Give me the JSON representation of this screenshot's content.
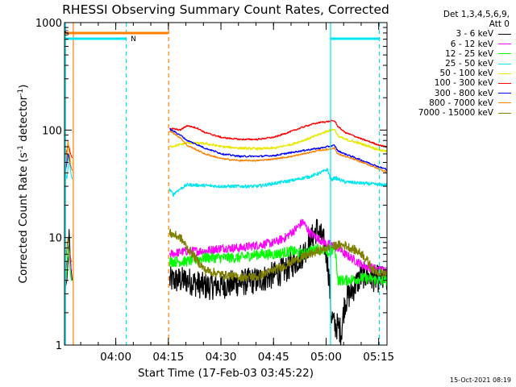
{
  "chart_data": {
    "type": "line",
    "title": "RHESSI Observing Summary Count Rates, Corrected",
    "ylabel_parts": [
      "Corrected Count Rate (s",
      "-1",
      " detector",
      "-1",
      ")"
    ],
    "xlabel": "Start Time (17-Feb-03 03:45:22)",
    "yscale": "log",
    "ylim": [
      1,
      1000
    ],
    "y_ticks": [
      1,
      10,
      100,
      1000
    ],
    "y_tick_labels": [
      "1",
      "10",
      "100",
      "1000"
    ],
    "xlim_min": [
      0,
      92
    ],
    "x_ticks_min": [
      14.63,
      29.63,
      44.63,
      59.63,
      74.63,
      89.63
    ],
    "x_tick_labels": [
      "04:00",
      "04:15",
      "04:30",
      "04:45",
      "05:00",
      "05:15"
    ],
    "legend_header": [
      "Det 1,3,4,5,6,9,",
      "Att 0"
    ],
    "legend_placement": "right, outside plot",
    "flags": [
      {
        "label": "S",
        "color": "#ff8000",
        "start_min": 0.2,
        "end_min": 29.6
      },
      {
        "label": "N",
        "color": "#00e5ee",
        "start_min": 0.2,
        "end_min": 17.5
      },
      {
        "label": "",
        "color": "#00e5ee",
        "start_min": 76.0,
        "end_min": 90.0
      }
    ],
    "vlines": [
      {
        "x_min": 0.3,
        "color": "#00e5ee",
        "style": "solid"
      },
      {
        "x_min": 2.5,
        "color": "#ff8000",
        "style": "solid"
      },
      {
        "x_min": 17.6,
        "color": "#00e5ee",
        "style": "dashed"
      },
      {
        "x_min": 29.7,
        "color": "#ff8000",
        "style": "dashed"
      },
      {
        "x_min": 75.9,
        "color": "#00e5ee",
        "style": "solid"
      },
      {
        "x_min": 89.8,
        "color": "#00e5ee",
        "style": "dashed"
      }
    ],
    "series": [
      {
        "name": "3 - 6 keV",
        "color": "#000000",
        "noise": 0.3,
        "x": [
          30,
          35,
          40,
          45,
          50,
          55,
          60,
          63,
          66,
          68,
          70,
          72,
          74,
          75,
          76,
          77,
          78,
          79,
          80,
          82,
          85,
          88,
          92
        ],
        "y": [
          4,
          4,
          3.5,
          3.6,
          3.8,
          4,
          4.5,
          5,
          6,
          7,
          9,
          12,
          9,
          6,
          2,
          1.5,
          1.5,
          1.3,
          2.5,
          3.2,
          4.5,
          4.2,
          4
        ]
      },
      {
        "name": "6 - 12 keV",
        "color": "#ff00ff",
        "noise": 0.1,
        "x": [
          30,
          35,
          40,
          45,
          50,
          55,
          60,
          63,
          66,
          68,
          70,
          72,
          74,
          76,
          78,
          80,
          85,
          90,
          92
        ],
        "y": [
          7,
          7.5,
          7.5,
          8,
          8,
          8.5,
          9,
          10,
          12,
          14,
          11,
          10,
          9,
          8.5,
          8,
          7,
          5.5,
          5,
          5
        ]
      },
      {
        "name": "12 - 25 keV",
        "color": "#00ff00",
        "noise": 0.12,
        "x": [
          30,
          35,
          40,
          45,
          50,
          55,
          60,
          65,
          68,
          70,
          72,
          74,
          76,
          77,
          78,
          80,
          85,
          90,
          92
        ],
        "y": [
          6,
          6,
          6.5,
          6.5,
          6.5,
          7,
          7,
          7.5,
          7,
          7.5,
          8,
          7.5,
          7,
          8.5,
          4,
          4,
          4.2,
          4,
          4
        ]
      },
      {
        "name": "25 - 50 keV",
        "color": "#00e5ee",
        "noise": 0.04,
        "x": [
          30,
          31,
          32,
          35,
          40,
          45,
          50,
          55,
          60,
          65,
          70,
          73,
          75,
          76,
          77,
          80,
          85,
          90,
          92
        ],
        "y": [
          28,
          25,
          27,
          31,
          30.5,
          30,
          30,
          30,
          32,
          34,
          37,
          40,
          43,
          34,
          36,
          33,
          32,
          31,
          31
        ]
      },
      {
        "name": "50 - 100 keV",
        "color": "#e8e800",
        "noise": 0.03,
        "x": [
          30,
          32,
          35,
          40,
          45,
          50,
          55,
          60,
          65,
          70,
          73,
          75,
          77,
          78,
          80,
          85,
          90,
          92
        ],
        "y": [
          70,
          72,
          76,
          75,
          70,
          68,
          67,
          68,
          74,
          84,
          92,
          98,
          102,
          88,
          82,
          74,
          65,
          63
        ]
      },
      {
        "name": "100 - 300 keV",
        "color": "#ff0000",
        "noise": 0.02,
        "x": [
          30,
          33,
          35,
          38,
          40,
          45,
          50,
          55,
          60,
          65,
          70,
          73,
          75,
          77,
          78,
          80,
          85,
          90,
          92
        ],
        "y": [
          104,
          100,
          110,
          104,
          95,
          85,
          82,
          82,
          86,
          98,
          112,
          118,
          120,
          122,
          108,
          95,
          82,
          72,
          70
        ]
      },
      {
        "name": "300 - 800 keV",
        "color": "#0000ff",
        "noise": 0.02,
        "x": [
          30,
          33,
          35,
          40,
          45,
          50,
          55,
          60,
          65,
          70,
          73,
          75,
          77,
          78,
          80,
          85,
          90,
          92
        ],
        "y": [
          102,
          90,
          80,
          68,
          60,
          57,
          57,
          58,
          62,
          66,
          68,
          70,
          72,
          64,
          60,
          52,
          45,
          43
        ]
      },
      {
        "name": "800 - 7000 keV",
        "color": "#ff8000",
        "noise": 0.02,
        "x": [
          30,
          33,
          35,
          40,
          45,
          50,
          55,
          60,
          65,
          70,
          73,
          75,
          77,
          78,
          80,
          85,
          90,
          92
        ],
        "y": [
          98,
          85,
          72,
          60,
          54,
          52,
          52,
          54,
          57,
          62,
          65,
          66,
          68,
          60,
          57,
          50,
          43,
          41
        ]
      },
      {
        "name": "7000 - 15000 keV",
        "color": "#808000",
        "noise": 0.1,
        "x": [
          30,
          33,
          35,
          38,
          40,
          45,
          50,
          55,
          60,
          63,
          65,
          70,
          75,
          78,
          80,
          85,
          88,
          90,
          92
        ],
        "y": [
          11,
          10,
          8,
          6,
          5,
          4.5,
          4.3,
          4.3,
          5,
          5.5,
          6,
          7,
          8,
          8.5,
          8.5,
          7,
          5,
          4.8,
          4.6
        ]
      }
    ],
    "pre_segment": {
      "x": [
        0.3,
        0.7,
        1.0,
        1.3,
        1.6,
        1.9,
        2.2
      ],
      "values": {
        "3 - 6 keV": [
          3.5,
          4,
          6,
          12,
          7,
          5,
          4
        ],
        "6 - 12 keV": [
          5,
          6,
          7,
          8,
          6,
          5,
          5
        ],
        "12 - 25 keV": [
          4,
          5,
          8,
          6,
          5,
          4,
          4
        ],
        "25 - 50 keV": [
          40,
          35,
          45,
          60,
          45,
          38,
          35
        ],
        "50 - 100 keV": [
          55,
          60,
          70,
          65,
          55,
          50,
          48
        ],
        "100 - 300 keV": [
          60,
          65,
          72,
          70,
          62,
          58,
          55
        ],
        "300 - 800 keV": [
          42,
          50,
          60,
          55,
          48,
          45,
          42
        ],
        "800 - 7000 keV": [
          45,
          60,
          80,
          65,
          50,
          45,
          42
        ],
        "7000 - 15000 keV": [
          6,
          8,
          10,
          8,
          7,
          6,
          6
        ]
      }
    },
    "timestamp": "15-Oct-2021 08:19"
  }
}
